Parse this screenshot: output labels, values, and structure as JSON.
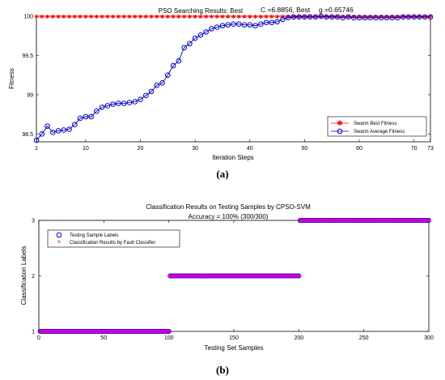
{
  "chart_data": [
    {
      "type": "line",
      "title": "PSO Searching Results: Best",
      "annotation_c": "C =6.8856, Best",
      "annotation_g": "g =0.65746",
      "xlabel": "Iteration Steps",
      "ylabel": "Fitness",
      "xlim": [
        1,
        73
      ],
      "ylim": [
        98.4,
        100
      ],
      "xticks": [
        "1",
        "10",
        "20",
        "30",
        "40",
        "50",
        "60",
        "70",
        "73"
      ],
      "yticks": [
        "98.5",
        "99",
        "99.5",
        "100"
      ],
      "legend_position": "bottom-right",
      "grid": false,
      "series": [
        {
          "name": "Swarm Best Fitness",
          "color": "#ff0000",
          "marker": "star",
          "values": [
            100,
            100,
            100,
            100,
            100,
            100,
            100,
            100,
            100,
            100,
            100,
            100,
            100,
            100,
            100,
            100,
            100,
            100,
            100,
            100,
            100,
            100,
            100,
            100,
            100,
            100,
            100,
            100,
            100,
            100,
            100,
            100,
            100,
            100,
            100,
            100,
            100,
            100,
            100,
            100,
            100,
            100,
            100,
            100,
            100,
            100,
            100,
            100,
            100,
            100,
            100,
            100,
            100,
            100,
            100,
            100,
            100,
            100,
            100,
            100,
            100,
            100,
            100,
            100,
            100,
            100,
            100,
            100,
            100,
            100,
            100,
            100,
            100
          ]
        },
        {
          "name": "Swarm Average Fitness",
          "color": "#0000cc",
          "marker": "circle",
          "values": [
            98.42,
            98.5,
            98.6,
            98.52,
            98.54,
            98.55,
            98.56,
            98.62,
            98.7,
            98.72,
            98.72,
            98.79,
            98.84,
            98.86,
            98.88,
            98.89,
            98.89,
            98.9,
            98.91,
            98.94,
            98.99,
            99.04,
            99.12,
            99.15,
            99.25,
            99.37,
            99.43,
            99.6,
            99.65,
            99.72,
            99.76,
            99.8,
            99.84,
            99.86,
            99.88,
            99.89,
            99.9,
            99.9,
            99.89,
            99.89,
            99.88,
            99.9,
            99.92,
            99.92,
            99.93,
            99.96,
            99.98,
            99.99,
            99.99,
            99.99,
            99.99,
            99.99,
            100,
            99.99,
            99.99,
            99.99,
            99.98,
            99.99,
            99.98,
            99.98,
            99.98,
            99.98,
            99.98,
            99.98,
            99.98,
            99.98,
            99.98,
            99.99,
            99.99,
            99.99,
            99.99,
            99.99,
            99.99
          ]
        }
      ],
      "panel_label": "(a)"
    },
    {
      "type": "scatter",
      "title": "Classification Results on Testing Samples by CPSO-SVM",
      "subtitle": "Accuracy = 100% (300/300)",
      "xlabel": "Testing Set Samples",
      "ylabel": "Classification Labels",
      "xlim": [
        0,
        300
      ],
      "ylim": [
        1,
        3
      ],
      "xticks": [
        "0",
        "50",
        "100",
        "150",
        "200",
        "250",
        "300"
      ],
      "yticks": [
        "1",
        "2",
        "3"
      ],
      "legend_position": "top-left",
      "grid": false,
      "series": [
        {
          "name": "Testing Sample Labels",
          "color": "#0000cc",
          "marker": "circle",
          "segments": [
            {
              "from": 1,
              "to": 100,
              "label": 1
            },
            {
              "from": 101,
              "to": 200,
              "label": 2
            },
            {
              "from": 201,
              "to": 300,
              "label": 3
            }
          ]
        },
        {
          "name": "Classification Results by Fault Classifier",
          "color": "#cc00cc",
          "marker": "x",
          "segments": [
            {
              "from": 1,
              "to": 100,
              "label": 1
            },
            {
              "from": 101,
              "to": 200,
              "label": 2
            },
            {
              "from": 201,
              "to": 300,
              "label": 3
            }
          ]
        }
      ],
      "panel_label": "(b)"
    }
  ]
}
